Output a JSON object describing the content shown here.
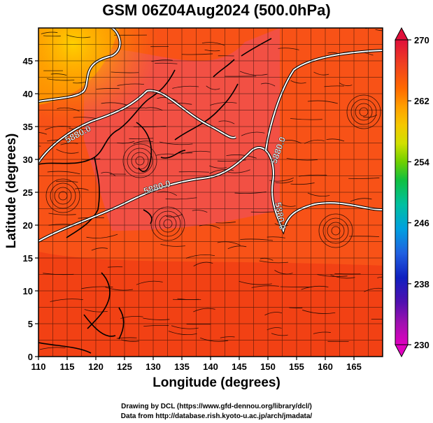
{
  "title": "GSM 06Z04Aug2024 (500.0hPa)",
  "x_label": "Longitude (degrees)",
  "y_label": "Latitude  (degrees)",
  "credit_line1": "Drawing by DCL (https://www.gfd-dennou.org/library/dcl/)",
  "credit_line2": "Data from http://database.rish.kyoto-u.ac.jp/arch/jmadata/",
  "contour_labels": [
    "5880.0",
    "5880.0",
    "5880.0",
    "5880.0"
  ],
  "map": {
    "lon_range": [
      110,
      170
    ],
    "lat_range": [
      0,
      50
    ],
    "x_ticks": [
      110,
      115,
      120,
      125,
      130,
      135,
      140,
      145,
      150,
      155,
      160,
      165
    ],
    "y_ticks": [
      0,
      5,
      10,
      15,
      20,
      25,
      30,
      35,
      40,
      45
    ]
  },
  "colorbar": {
    "tick_labels": [
      "270",
      "262",
      "254",
      "246",
      "238",
      "230"
    ],
    "colors": [
      "#e0103a",
      "#f04020",
      "#ff6a00",
      "#ffa000",
      "#f5c800",
      "#d0e000",
      "#70d000",
      "#10c040",
      "#00c0a0",
      "#00a0e0",
      "#2060e0",
      "#1020c0",
      "#5010b0",
      "#a010b0",
      "#e000c0"
    ]
  }
}
